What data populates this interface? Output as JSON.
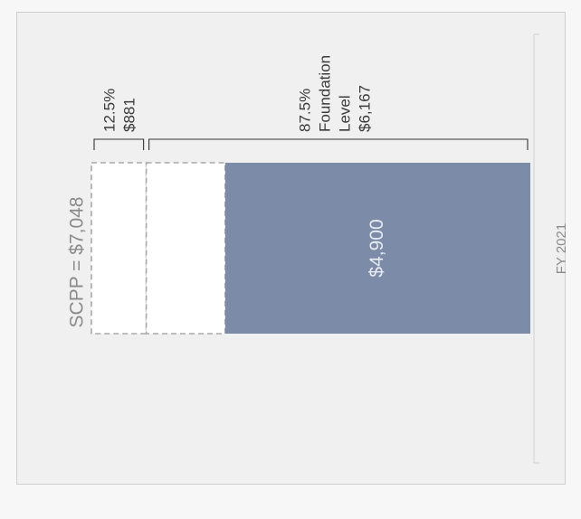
{
  "chart_data": {
    "type": "bar",
    "orientation": "horizontal",
    "title": "",
    "xlabel": "",
    "ylabel": "",
    "categories": [
      "FY 2021"
    ],
    "total_label": "SCPP = $7,048",
    "total_value": 7048,
    "segments": [
      {
        "name": "",
        "value": 881,
        "style": "dashed-outline",
        "top_labels": [
          "12.5%",
          "$881"
        ]
      },
      {
        "name": "",
        "value": 1267,
        "style": "dashed-outline",
        "top_labels": []
      },
      {
        "name": "",
        "value": 4900,
        "style": "filled",
        "label": "$4,900",
        "top_labels": []
      }
    ],
    "brackets": [
      {
        "lines": [
          "12.5%",
          "$881"
        ],
        "value_range": [
          0,
          881
        ]
      },
      {
        "lines": [
          "87.5%",
          "Foundation",
          "Level",
          "$6,167"
        ],
        "value_range": [
          881,
          7048
        ]
      }
    ],
    "xlim": [
      0,
      7048
    ],
    "colors": {
      "filled": "#7b8ba8",
      "outline": "#a9a9a9",
      "panel_border": "#cfcfcf",
      "panel_bg": "#f0f0f0",
      "text_dark": "#3a3a3a",
      "text_gray": "#8a8a8a",
      "bar_label": "#e8ebf1"
    },
    "grid": false,
    "legend": "none"
  }
}
